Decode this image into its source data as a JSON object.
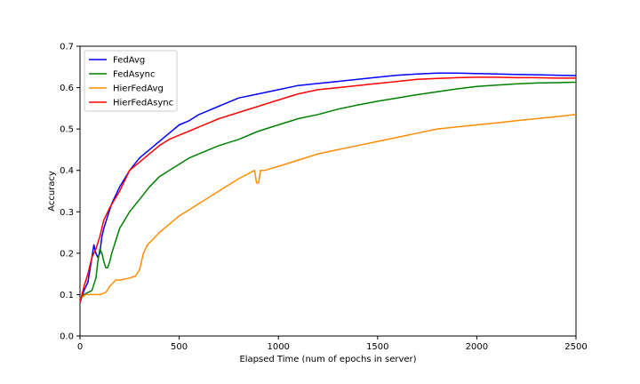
{
  "chart_data": {
    "type": "line",
    "xlabel": "Elapsed Time (num of epochs in server)",
    "ylabel": "Accuracy",
    "xlim": [
      0,
      2500
    ],
    "ylim": [
      0.0,
      0.7
    ],
    "xticks": [
      "0",
      "500",
      "1000",
      "1500",
      "2000",
      "2500"
    ],
    "yticks": [
      "0.0",
      "0.1",
      "0.2",
      "0.3",
      "0.4",
      "0.5",
      "0.6",
      "0.7"
    ],
    "grid": false,
    "legend_position": "upper-left",
    "series": [
      {
        "name": "FedAvg",
        "color": "#0000ff",
        "x": [
          0,
          20,
          40,
          60,
          70,
          80,
          90,
          100,
          110,
          120,
          140,
          160,
          200,
          250,
          300,
          350,
          400,
          450,
          500,
          550,
          600,
          650,
          700,
          800,
          900,
          1000,
          1100,
          1200,
          1300,
          1400,
          1500,
          1600,
          1700,
          1800,
          1900,
          2000,
          2100,
          2200,
          2300,
          2400,
          2500
        ],
        "y": [
          0.08,
          0.11,
          0.13,
          0.19,
          0.22,
          0.2,
          0.19,
          0.2,
          0.24,
          0.26,
          0.29,
          0.32,
          0.36,
          0.4,
          0.43,
          0.45,
          0.47,
          0.49,
          0.51,
          0.52,
          0.535,
          0.545,
          0.555,
          0.575,
          0.585,
          0.595,
          0.605,
          0.61,
          0.615,
          0.62,
          0.625,
          0.63,
          0.633,
          0.635,
          0.635,
          0.634,
          0.633,
          0.632,
          0.631,
          0.63,
          0.629
        ]
      },
      {
        "name": "FedAsync",
        "color": "#008000",
        "x": [
          0,
          20,
          40,
          60,
          80,
          90,
          100,
          110,
          120,
          130,
          140,
          150,
          160,
          180,
          200,
          250,
          300,
          350,
          400,
          450,
          500,
          550,
          600,
          700,
          800,
          900,
          1000,
          1100,
          1200,
          1300,
          1400,
          1500,
          1600,
          1700,
          1800,
          1900,
          2000,
          2100,
          2200,
          2300,
          2400,
          2500
        ],
        "y": [
          0.09,
          0.1,
          0.105,
          0.11,
          0.14,
          0.18,
          0.21,
          0.2,
          0.18,
          0.165,
          0.165,
          0.18,
          0.2,
          0.23,
          0.26,
          0.3,
          0.33,
          0.36,
          0.385,
          0.4,
          0.415,
          0.43,
          0.44,
          0.46,
          0.475,
          0.495,
          0.51,
          0.525,
          0.535,
          0.548,
          0.558,
          0.567,
          0.575,
          0.583,
          0.59,
          0.597,
          0.603,
          0.606,
          0.609,
          0.611,
          0.612,
          0.613
        ]
      },
      {
        "name": "HierFedAvg",
        "color": "#ff8c00",
        "x": [
          0,
          30,
          60,
          100,
          130,
          150,
          180,
          200,
          250,
          280,
          300,
          320,
          340,
          360,
          400,
          450,
          500,
          550,
          600,
          700,
          800,
          880,
          890,
          900,
          910,
          930,
          1000,
          1100,
          1200,
          1300,
          1400,
          1500,
          1600,
          1700,
          1800,
          1900,
          2000,
          2100,
          2200,
          2300,
          2400,
          2500
        ],
        "y": [
          0.09,
          0.1,
          0.1,
          0.1,
          0.105,
          0.12,
          0.135,
          0.135,
          0.14,
          0.145,
          0.16,
          0.2,
          0.22,
          0.23,
          0.25,
          0.27,
          0.29,
          0.305,
          0.32,
          0.35,
          0.38,
          0.4,
          0.37,
          0.37,
          0.4,
          0.4,
          0.41,
          0.425,
          0.44,
          0.45,
          0.46,
          0.47,
          0.48,
          0.49,
          0.5,
          0.505,
          0.51,
          0.515,
          0.52,
          0.525,
          0.53,
          0.535
        ]
      },
      {
        "name": "HierFedAsync",
        "color": "#ff0000",
        "x": [
          0,
          20,
          40,
          60,
          80,
          100,
          120,
          150,
          200,
          250,
          300,
          350,
          400,
          450,
          500,
          550,
          600,
          650,
          700,
          800,
          900,
          1000,
          1100,
          1200,
          1300,
          1400,
          1500,
          1600,
          1700,
          1800,
          1900,
          2000,
          2100,
          2200,
          2300,
          2400,
          2500
        ],
        "y": [
          0.08,
          0.12,
          0.15,
          0.19,
          0.21,
          0.24,
          0.28,
          0.31,
          0.35,
          0.4,
          0.42,
          0.44,
          0.46,
          0.475,
          0.485,
          0.495,
          0.505,
          0.515,
          0.525,
          0.54,
          0.555,
          0.57,
          0.585,
          0.595,
          0.6,
          0.605,
          0.61,
          0.615,
          0.62,
          0.622,
          0.624,
          0.625,
          0.625,
          0.624,
          0.624,
          0.623,
          0.623
        ]
      }
    ]
  }
}
